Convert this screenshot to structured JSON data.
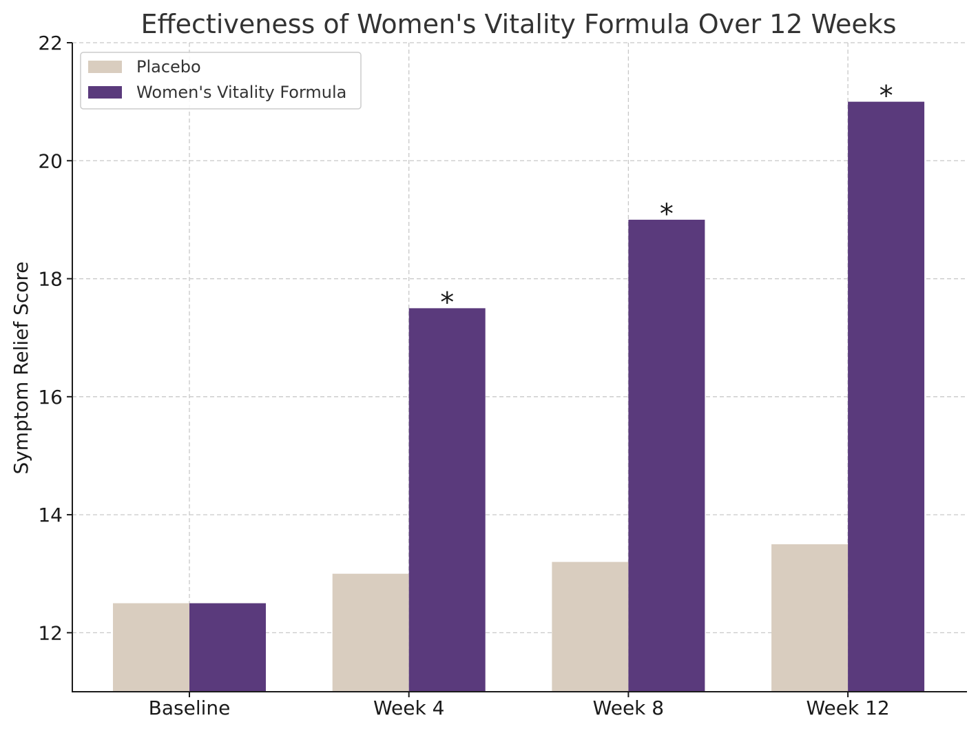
{
  "chart_data": {
    "type": "bar",
    "title": "Effectiveness of Women's Vitality Formula Over 12 Weeks",
    "xlabel": "",
    "ylabel": "Symptom Relief Score",
    "categories": [
      "Baseline",
      "Week 4",
      "Week 8",
      "Week 12"
    ],
    "ylim": [
      11,
      22
    ],
    "yticks": [
      12,
      14,
      16,
      18,
      20,
      22
    ],
    "grid": true,
    "legend_position": "top-left",
    "series": [
      {
        "name": "Placebo",
        "color": "#d9cdbf",
        "values": [
          12.5,
          13.0,
          13.2,
          13.5
        ]
      },
      {
        "name": "Women's Vitality Formula",
        "color": "#5a3a7c",
        "values": [
          12.5,
          17.5,
          19.0,
          21.0
        ]
      }
    ],
    "annotations": [
      {
        "category": "Week 4",
        "text": "*"
      },
      {
        "category": "Week 8",
        "text": "*"
      },
      {
        "category": "Week 12",
        "text": "*"
      }
    ]
  }
}
